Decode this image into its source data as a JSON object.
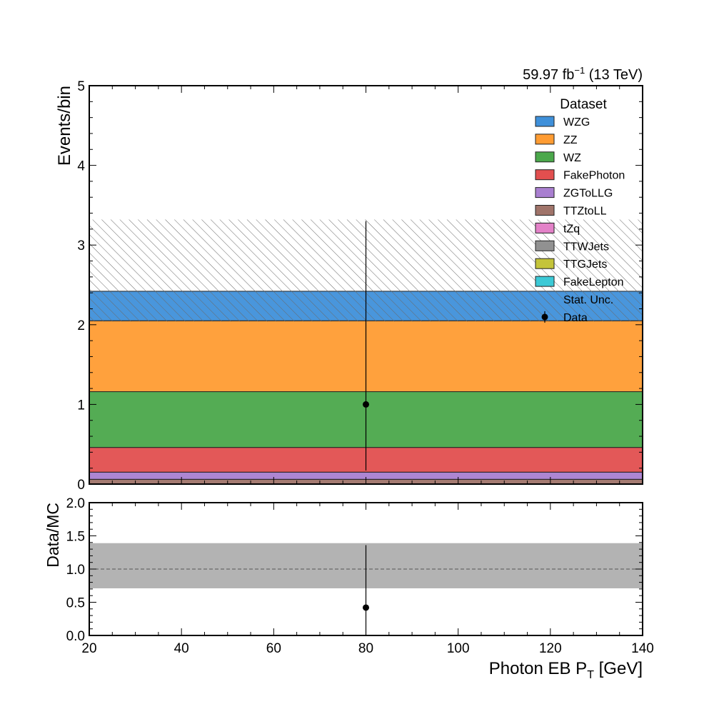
{
  "lumi_label": {
    "value": "59.97 fb",
    "sup": "−1",
    "energy": " (13 TeV)"
  },
  "chart_data": [
    {
      "type": "bar",
      "subtype": "stacked-histogram",
      "bin_edges": [
        20,
        140
      ],
      "xlim": [
        20,
        140
      ],
      "ylim": [
        0,
        5
      ],
      "ylabel": "Events/bin",
      "yticks": [
        0,
        1,
        2,
        3,
        4,
        5
      ],
      "legend": {
        "title": "Dataset",
        "placement": "top-right"
      },
      "series": [
        {
          "name": "WZG",
          "values": [
            0.37
          ],
          "color": "#3f90da"
        },
        {
          "name": "ZZ",
          "values": [
            0.89
          ],
          "color": "#ff9c33"
        },
        {
          "name": "WZ",
          "values": [
            0.7
          ],
          "color": "#4ba84b"
        },
        {
          "name": "FakePhoton",
          "values": [
            0.31
          ],
          "color": "#e24f4f"
        },
        {
          "name": "ZGToLLG",
          "values": [
            0.09
          ],
          "color": "#a97fd0"
        },
        {
          "name": "TTZtoLL",
          "values": [
            0.06
          ],
          "color": "#a0746a"
        },
        {
          "name": "tZq",
          "values": [
            0
          ],
          "color": "#e382c8"
        },
        {
          "name": "TTWJets",
          "values": [
            0
          ],
          "color": "#919191"
        },
        {
          "name": "TTGJets",
          "values": [
            0
          ],
          "color": "#c4c43a"
        },
        {
          "name": "FakeLepton",
          "values": [
            0
          ],
          "color": "#3cc9d6"
        }
      ],
      "stat_unc": {
        "name": "Stat. Unc.",
        "low": 2.04,
        "high": 3.32
      },
      "data": {
        "name": "Data",
        "x": [
          80
        ],
        "y": [
          1.0
        ],
        "yerr_low": [
          0.83
        ],
        "yerr_high": [
          2.3
        ]
      }
    },
    {
      "type": "ratio",
      "xlim": [
        20,
        140
      ],
      "ylim": [
        0,
        2
      ],
      "ylabel": "Data/MC",
      "xlabel": {
        "main": "Photon EB P",
        "sub": "T",
        "unit": " [GeV]"
      },
      "xticks": [
        20,
        40,
        60,
        80,
        100,
        120,
        140
      ],
      "yticks": [
        "0.0",
        "0.5",
        "1.0",
        "1.5",
        "2.0"
      ],
      "reference_line": 1.0,
      "unc_band": {
        "low": 0.71,
        "high": 1.39
      },
      "points": {
        "x": [
          80
        ],
        "y": [
          0.42
        ],
        "yerr_low": [
          0.42
        ],
        "yerr_high": [
          0.94
        ]
      }
    }
  ]
}
